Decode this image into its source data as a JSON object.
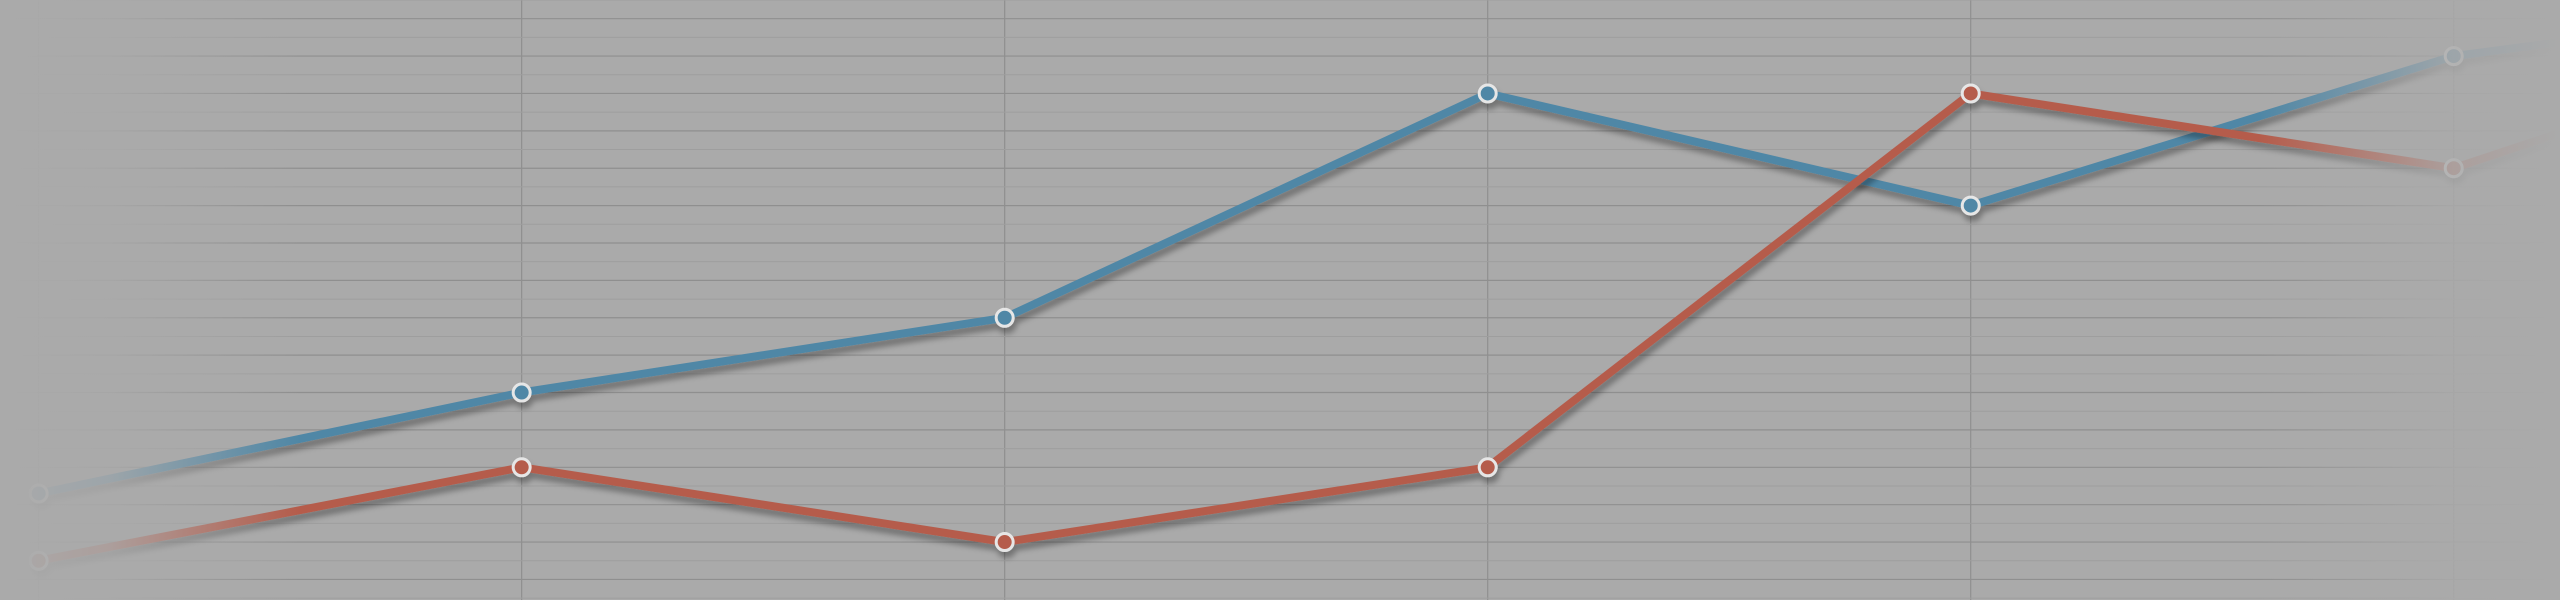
{
  "chart_data": {
    "type": "line",
    "categories": [
      "",
      "",
      "",
      "",
      "",
      "",
      ""
    ],
    "x": [
      0,
      1,
      2,
      3,
      4,
      5,
      6
    ],
    "series": [
      {
        "values": [
          2.3,
          5.0,
          7.0,
          13.0,
          10.0,
          14.0,
          15.7
        ],
        "color": "#4f87a6"
      },
      {
        "values": [
          0.5,
          3.0,
          1.0,
          3.0,
          13.0,
          11.0,
          15.3
        ],
        "color": "#b55c4b"
      }
    ],
    "xlim": [
      -0.08,
      5.22
    ],
    "ylim": [
      -0.55,
      15.5
    ],
    "grid": true,
    "title": "",
    "xlabel": "",
    "ylabel": "",
    "legend": "none",
    "colors": {
      "background": "#aaaaaa",
      "grid_major": "#8f8f8f",
      "grid_minor": "#9e9e9e"
    }
  }
}
